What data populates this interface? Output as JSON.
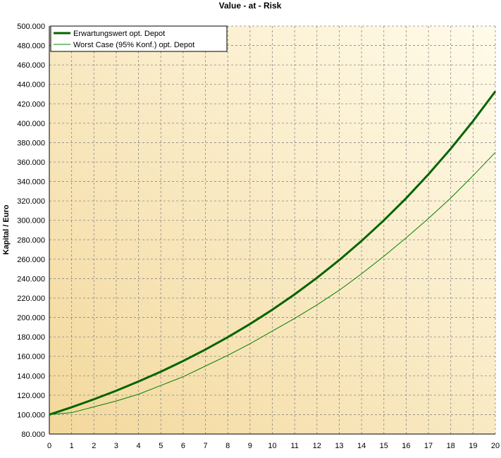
{
  "chart_data": {
    "type": "line",
    "title": "Value - at - Risk",
    "y_label": "Kapital / Euro",
    "x": [
      0,
      1,
      2,
      3,
      4,
      5,
      6,
      7,
      8,
      9,
      10,
      11,
      12,
      13,
      14,
      15,
      16,
      17,
      18,
      19,
      20
    ],
    "series": [
      {
        "name": "Erwartungswert opt. Depot",
        "color": "#006400",
        "width": 3,
        "values": [
          100000,
          107600,
          115800,
          124600,
          134100,
          144200,
          155200,
          167000,
          179700,
          193300,
          208000,
          223800,
          240800,
          259100,
          278800,
          300000,
          322800,
          347400,
          373800,
          402200,
          432800
        ]
      },
      {
        "name": "Worst Case (95% Konf.) opt. Depot",
        "color": "#008000",
        "width": 1,
        "values": [
          100000,
          102000,
          108000,
          114000,
          121000,
          130000,
          139000,
          150000,
          161000,
          173000,
          186000,
          199000,
          213000,
          228000,
          245000,
          263000,
          282000,
          302000,
          323000,
          346000,
          370000
        ]
      }
    ],
    "xlim": [
      0,
      20
    ],
    "xticks": [
      0,
      1,
      2,
      3,
      4,
      5,
      6,
      7,
      8,
      9,
      10,
      11,
      12,
      13,
      14,
      15,
      16,
      17,
      18,
      19,
      20
    ],
    "ylim": [
      80000,
      500000
    ],
    "yticks": [
      {
        "value": 80000,
        "label": "80.000"
      },
      {
        "value": 100000,
        "label": "100.000"
      },
      {
        "value": 120000,
        "label": "120.000"
      },
      {
        "value": 140000,
        "label": "140.000"
      },
      {
        "value": 160000,
        "label": "160.000"
      },
      {
        "value": 180000,
        "label": "180.000"
      },
      {
        "value": 200000,
        "label": "200.000"
      },
      {
        "value": 220000,
        "label": "220.000"
      },
      {
        "value": 240000,
        "label": "240.000"
      },
      {
        "value": 260000,
        "label": "260.000"
      },
      {
        "value": 280000,
        "label": "280.000"
      },
      {
        "value": 300000,
        "label": "300.000"
      },
      {
        "value": 320000,
        "label": "320.000"
      },
      {
        "value": 340000,
        "label": "340.000"
      },
      {
        "value": 360000,
        "label": "360.000"
      },
      {
        "value": 380000,
        "label": "380.000"
      },
      {
        "value": 400000,
        "label": "400.000"
      },
      {
        "value": 420000,
        "label": "420.000"
      },
      {
        "value": 440000,
        "label": "440.000"
      },
      {
        "value": 460000,
        "label": "460.000"
      },
      {
        "value": 480000,
        "label": "480.000"
      },
      {
        "value": 500000,
        "label": "500.000"
      }
    ],
    "grid": true,
    "legend": "top-left"
  }
}
